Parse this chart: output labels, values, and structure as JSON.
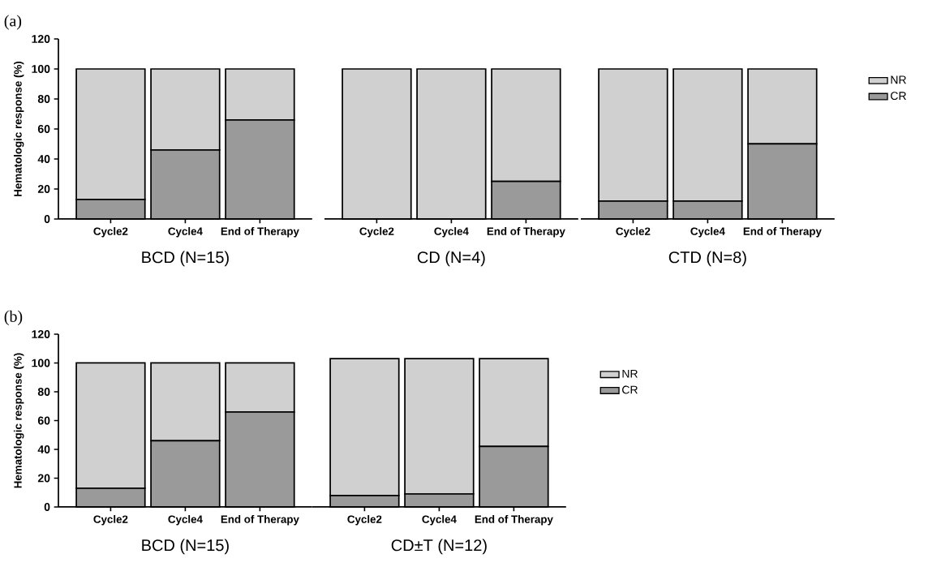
{
  "chart_data": [
    {
      "type": "bar",
      "stacked": true,
      "annotations": [
        "(a)"
      ],
      "categories": [
        "Cycle2",
        "Cycle4",
        "End of Therapy"
      ],
      "xlabel": "BCD (N=15)",
      "ylabel": "Hematologic response (%)",
      "ylim": [
        0,
        120
      ],
      "yticks": [
        0,
        20,
        40,
        60,
        80,
        100,
        120
      ],
      "series": [
        {
          "color": "#9a9a9a",
          "values": [
            13,
            46,
            66
          ]
        },
        {
          "color": "#d0d0d0",
          "values": [
            87,
            54,
            34
          ]
        }
      ]
    },
    {
      "type": "bar",
      "stacked": true,
      "tick_labels": "x",
      "categories": [
        "Cycle2",
        "Cycle4",
        "End of Therapy"
      ],
      "xlabel": "CD (N=4)",
      "ylim": [
        0,
        120
      ],
      "series": [
        {
          "color": "#9a9a9a",
          "values": [
            0,
            0,
            25
          ]
        },
        {
          "color": "#d0d0d0",
          "values": [
            100,
            100,
            75
          ]
        }
      ]
    },
    {
      "type": "bar",
      "stacked": true,
      "tick_labels": "x",
      "legend": "right",
      "categories": [
        "Cycle2",
        "Cycle4",
        "End of Therapy"
      ],
      "xlabel": "CTD (N=8)",
      "ylim": [
        0,
        120
      ],
      "series": [
        {
          "name": "CR",
          "color": "#9a9a9a",
          "values": [
            12,
            12,
            50
          ]
        },
        {
          "name": "NR",
          "color": "#d0d0d0",
          "values": [
            88,
            88,
            50
          ]
        }
      ]
    },
    {
      "type": "bar",
      "stacked": true,
      "annotations": [
        "(b)"
      ],
      "categories": [
        "Cycle2",
        "Cycle4",
        "End of Therapy"
      ],
      "xlabel": "BCD (N=15)",
      "ylabel": "Hematologic response (%)",
      "ylim": [
        0,
        120
      ],
      "yticks": [
        0,
        20,
        40,
        60,
        80,
        100,
        120
      ],
      "series": [
        {
          "color": "#9a9a9a",
          "values": [
            13,
            46,
            66
          ]
        },
        {
          "color": "#d0d0d0",
          "values": [
            87,
            54,
            34
          ]
        }
      ]
    },
    {
      "type": "bar",
      "stacked": true,
      "tick_labels": "x",
      "legend": "right",
      "categories": [
        "Cycle2",
        "Cycle4",
        "End of Therapy"
      ],
      "xlabel": "CD±T (N=12)",
      "ylim": [
        0,
        120
      ],
      "series": [
        {
          "name": "CR",
          "color": "#9a9a9a",
          "values": [
            8,
            9,
            42
          ]
        },
        {
          "name": "NR",
          "color": "#d0d0d0",
          "values": [
            95,
            94,
            61
          ]
        }
      ]
    }
  ]
}
